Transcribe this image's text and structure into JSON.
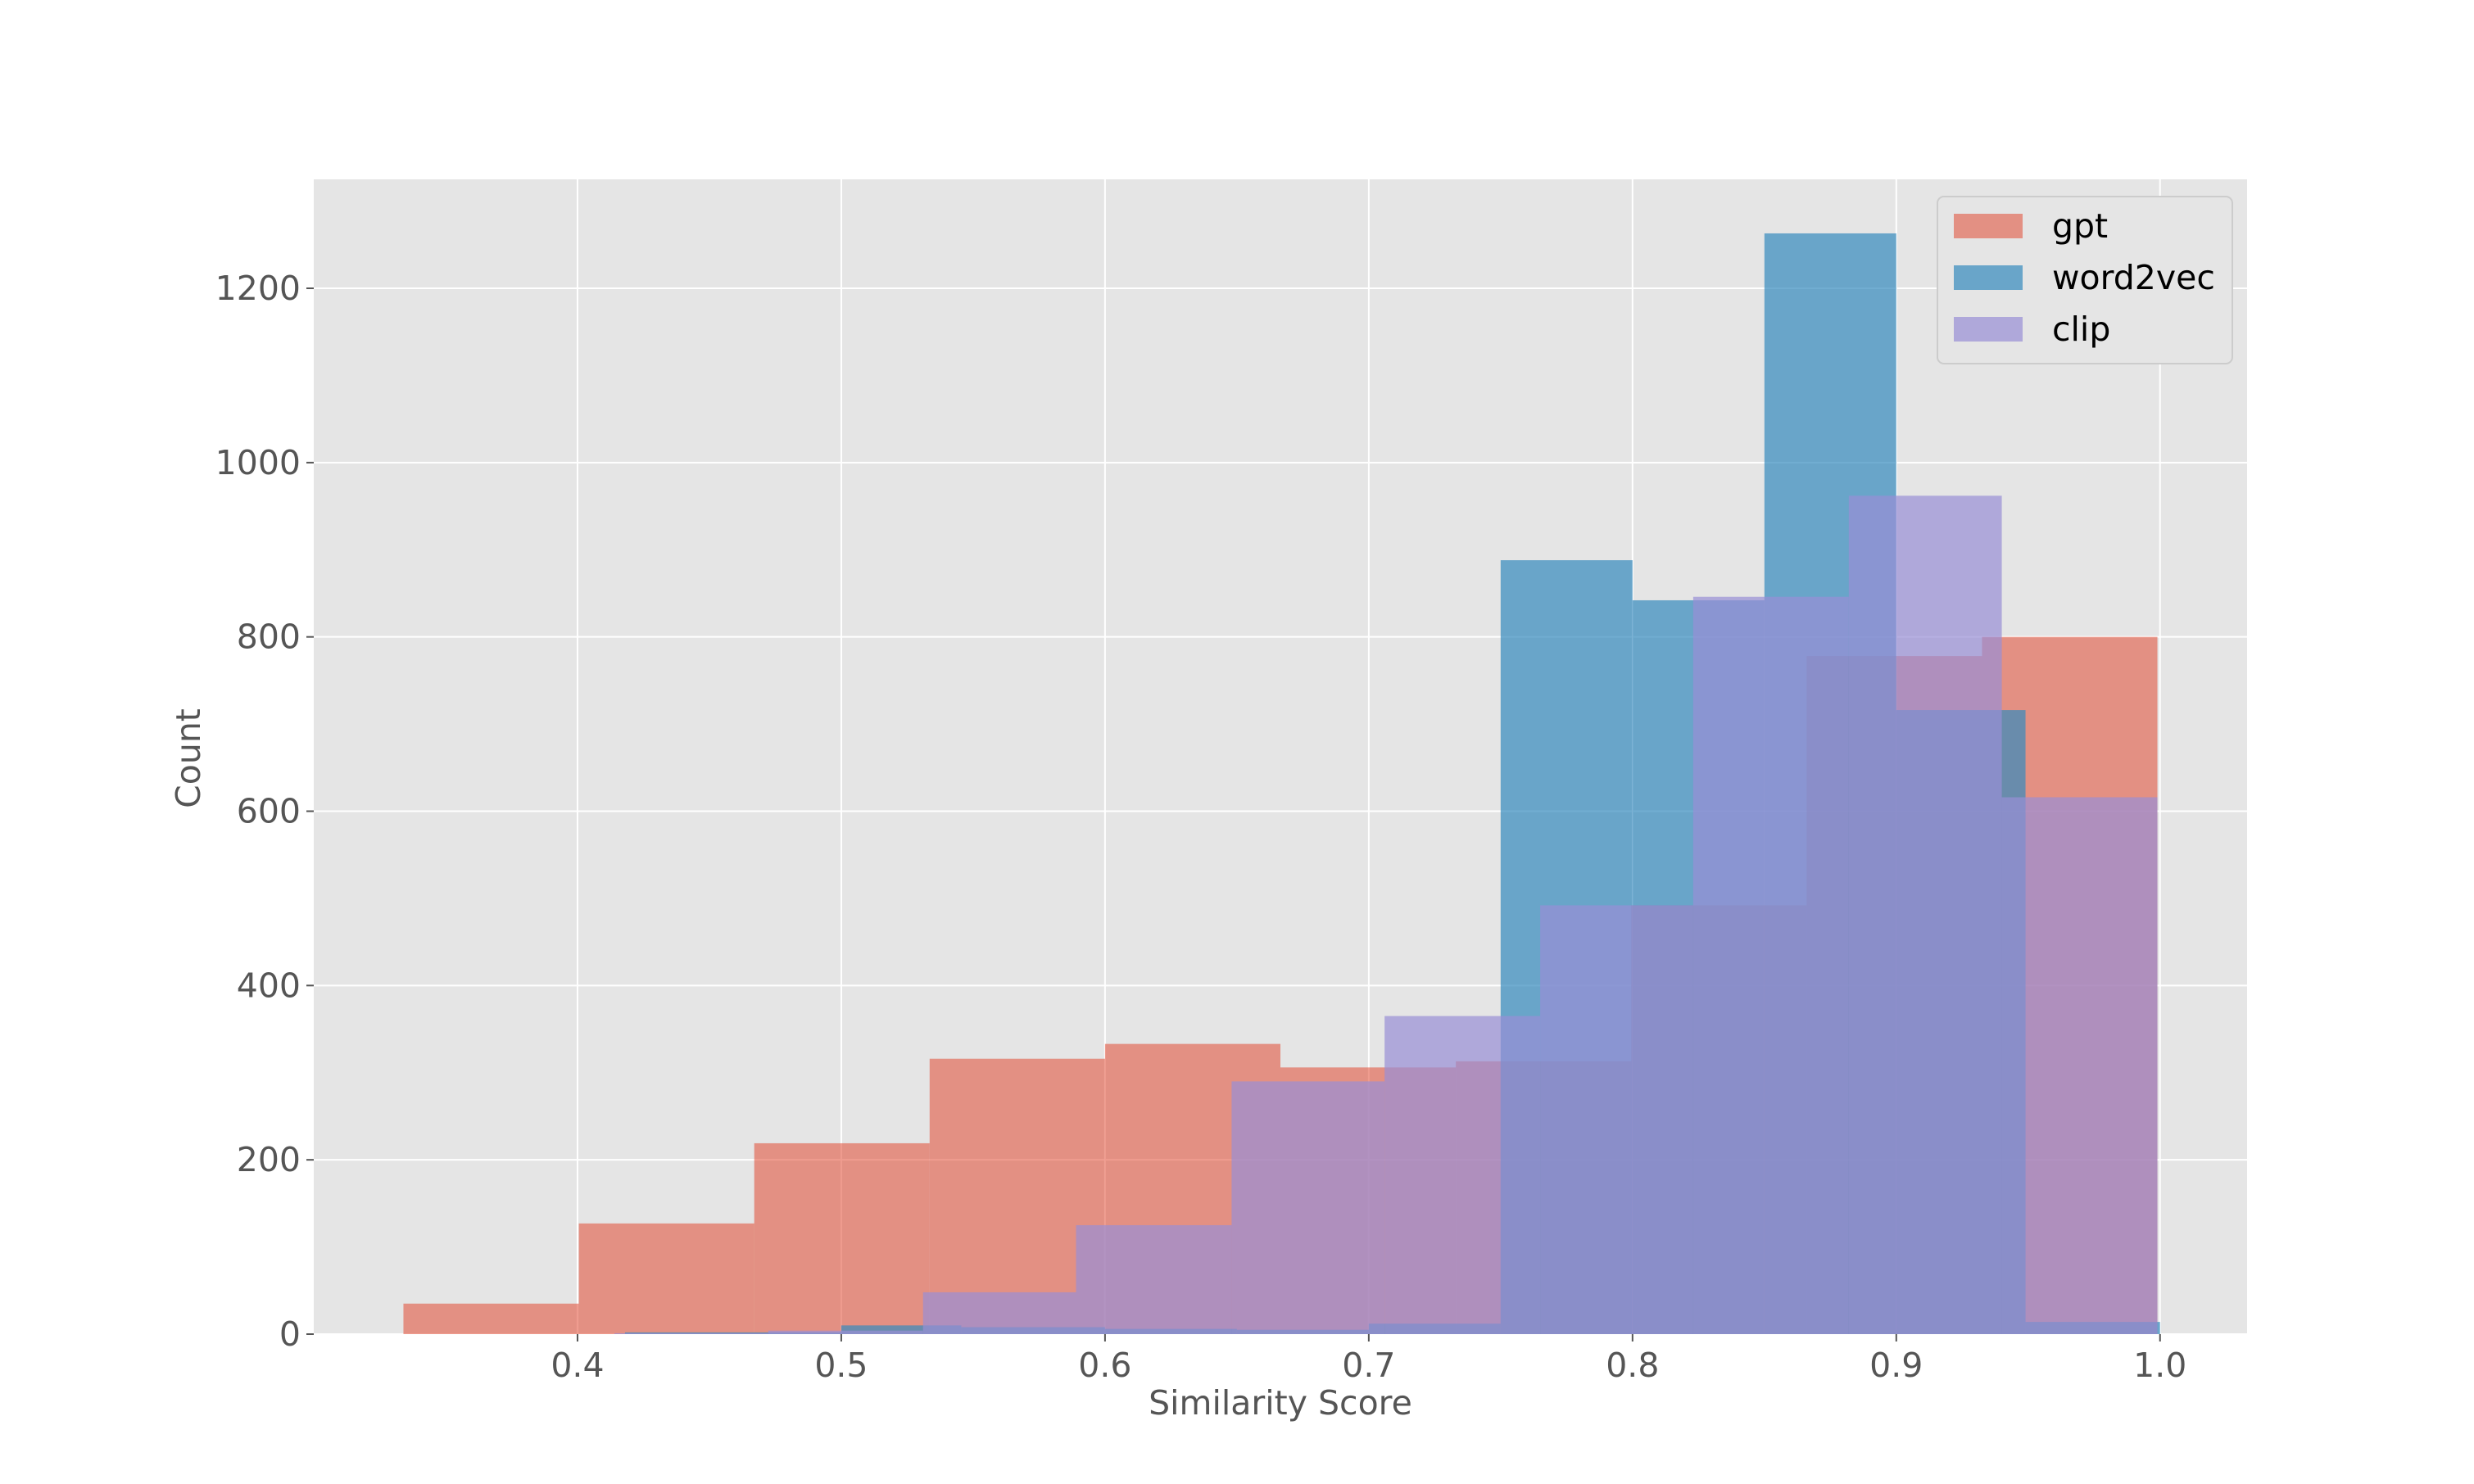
{
  "chart_data": {
    "type": "histogram",
    "title": "",
    "xlabel": "Similarity Score",
    "ylabel": "Count",
    "xlim": [
      0.3,
      1.033
    ],
    "ylim": [
      0,
      1325
    ],
    "x_ticks": [
      "0.4",
      "0.5",
      "0.6",
      "0.7",
      "0.8",
      "0.9",
      "1.0"
    ],
    "x_tick_values": [
      0.4,
      0.5,
      0.6,
      0.7,
      0.8,
      0.9,
      1.0
    ],
    "y_ticks": [
      "0",
      "200",
      "400",
      "600",
      "800",
      "1000",
      "1200"
    ],
    "y_tick_values": [
      0,
      200,
      400,
      600,
      800,
      1000,
      1200
    ],
    "grid": true,
    "legend_position": "top-right",
    "background": "#e5e5e5",
    "series": [
      {
        "name": "gpt",
        "color": "#e24a33",
        "opacity": 0.55,
        "bin_edges": [
          0.334,
          0.4005,
          0.467,
          0.5335,
          0.6,
          0.6665,
          0.733,
          0.7995,
          0.866,
          0.9325,
          0.999
        ],
        "counts": [
          35,
          127,
          219,
          316,
          333,
          306,
          313,
          492,
          778,
          800
        ]
      },
      {
        "name": "word2vec",
        "color": "#348abd",
        "opacity": 0.7,
        "bin_edges": [
          0.418,
          0.5,
          0.5455,
          0.6,
          0.65,
          0.7,
          0.75,
          0.8,
          0.85,
          0.9,
          0.949,
          1.0
        ],
        "counts": [
          2,
          10,
          8,
          6,
          5,
          12,
          888,
          842,
          1263,
          716,
          14
        ]
      },
      {
        "name": "clip",
        "color": "#988ed5",
        "opacity": 0.7,
        "bin_edges": [
          0.414,
          0.4723,
          0.531,
          0.589,
          0.648,
          0.706,
          0.765,
          0.823,
          0.882,
          0.94,
          0.999
        ],
        "counts": [
          1,
          4,
          48,
          125,
          290,
          365,
          492,
          846,
          962,
          616
        ]
      }
    ]
  }
}
